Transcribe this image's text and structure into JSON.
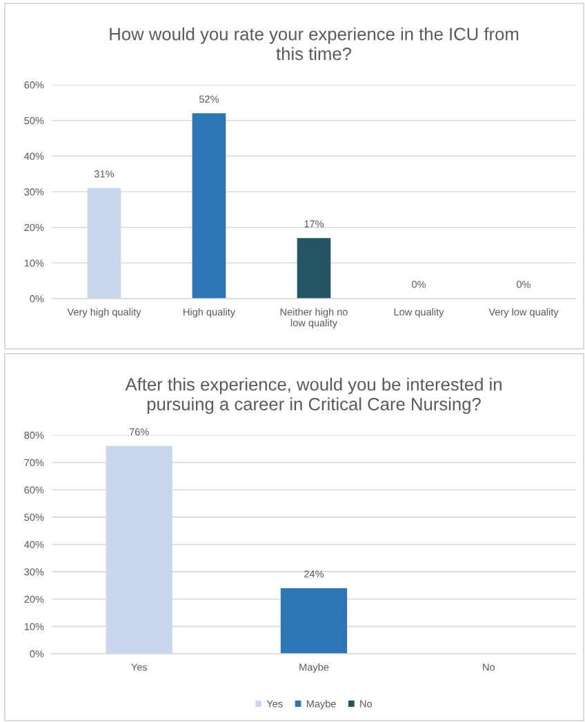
{
  "chart_data": [
    {
      "type": "bar",
      "title": "How would you rate your experience in the ICU from this time?",
      "categories": [
        "Very high quality",
        "High quality",
        "Neither high no low quality",
        "Low quality",
        "Very low quality"
      ],
      "values": [
        31,
        52,
        17,
        0,
        0
      ],
      "colors": [
        "#cad6ee",
        "#2e75b6",
        "#255565",
        null,
        null
      ],
      "value_labels": [
        "31%",
        "52%",
        "17%",
        "0%",
        "0%"
      ],
      "ylim": [
        0,
        60
      ],
      "yticks": [
        {
          "value": 0,
          "label": "0%"
        },
        {
          "value": 10,
          "label": "10%"
        },
        {
          "value": 20,
          "label": "20%"
        },
        {
          "value": 30,
          "label": "30%"
        },
        {
          "value": 40,
          "label": "40%"
        },
        {
          "value": 50,
          "label": "50%"
        },
        {
          "value": 60,
          "label": "60%"
        }
      ],
      "grid": "y"
    },
    {
      "type": "bar",
      "title": "After this experience, would you be interested in pursuing a career in Critical Care Nursing?",
      "categories": [
        "Yes",
        "Maybe",
        "No"
      ],
      "stacked": true,
      "series": [
        {
          "name": "Yes",
          "color": "#cad6ee",
          "values": [
            76,
            null,
            null
          ],
          "value_labels": [
            "76%",
            null,
            null
          ]
        },
        {
          "name": "Maybe",
          "color": "#2e75b6",
          "values": [
            null,
            24,
            null
          ],
          "value_labels": [
            null,
            "24%",
            null
          ]
        },
        {
          "name": "No",
          "color": "#255565",
          "values": [
            null,
            null,
            0
          ]
        }
      ],
      "ylim": [
        0,
        80
      ],
      "yticks": [
        {
          "value": 0,
          "label": "0%"
        },
        {
          "value": 10,
          "label": "10%"
        },
        {
          "value": 20,
          "label": "20%"
        },
        {
          "value": 30,
          "label": "30%"
        },
        {
          "value": 40,
          "label": "40%"
        },
        {
          "value": 50,
          "label": "50%"
        },
        {
          "value": 60,
          "label": "60%"
        },
        {
          "value": 70,
          "label": "70%"
        },
        {
          "value": 80,
          "label": "80%"
        }
      ],
      "grid": "y",
      "legend": "bottom"
    }
  ]
}
